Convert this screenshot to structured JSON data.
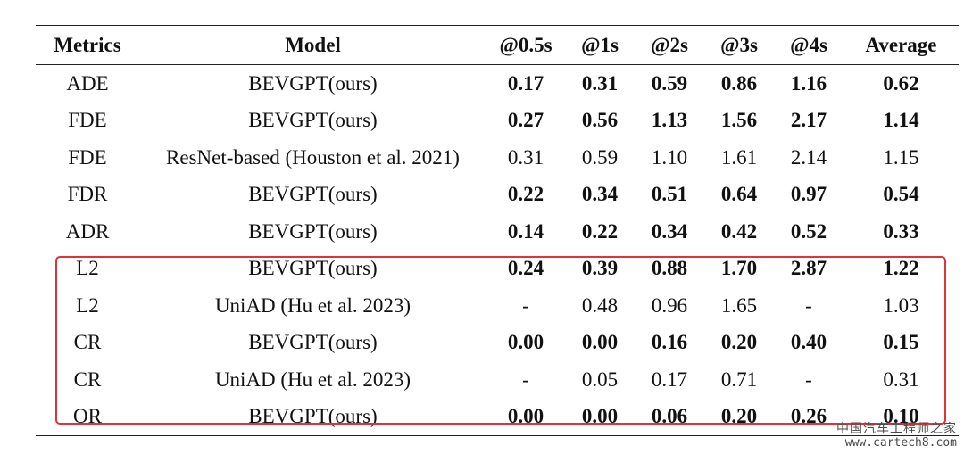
{
  "table": {
    "headers": [
      "Metrics",
      "Model",
      "@0.5s",
      "@1s",
      "@2s",
      "@3s",
      "@4s",
      "Average"
    ],
    "rows": [
      {
        "metric": "ADE",
        "model": "BEVGPT(ours)",
        "values": [
          "0.17",
          "0.31",
          "0.59",
          "0.86",
          "1.16",
          "0.62"
        ],
        "bold": true
      },
      {
        "metric": "FDE",
        "model": "BEVGPT(ours)",
        "values": [
          "0.27",
          "0.56",
          "1.13",
          "1.56",
          "2.17",
          "1.14"
        ],
        "bold": true
      },
      {
        "metric": "FDE",
        "model": "ResNet-based (Houston et al. 2021)",
        "values": [
          "0.31",
          "0.59",
          "1.10",
          "1.61",
          "2.14",
          "1.15"
        ],
        "bold": false
      },
      {
        "metric": "FDR",
        "model": "BEVGPT(ours)",
        "values": [
          "0.22",
          "0.34",
          "0.51",
          "0.64",
          "0.97",
          "0.54"
        ],
        "bold": true
      },
      {
        "metric": "ADR",
        "model": "BEVGPT(ours)",
        "values": [
          "0.14",
          "0.22",
          "0.34",
          "0.42",
          "0.52",
          "0.33"
        ],
        "bold": true
      },
      {
        "metric": "L2",
        "model": "BEVGPT(ours)",
        "values": [
          "0.24",
          "0.39",
          "0.88",
          "1.70",
          "2.87",
          "1.22"
        ],
        "bold": true
      },
      {
        "metric": "L2",
        "model": "UniAD (Hu et al. 2023)",
        "values": [
          "-",
          "0.48",
          "0.96",
          "1.65",
          "-",
          "1.03"
        ],
        "bold": false
      },
      {
        "metric": "CR",
        "model": "BEVGPT(ours)",
        "values": [
          "0.00",
          "0.00",
          "0.16",
          "0.20",
          "0.40",
          "0.15"
        ],
        "bold": true
      },
      {
        "metric": "CR",
        "model": "UniAD (Hu et al. 2023)",
        "values": [
          "-",
          "0.05",
          "0.17",
          "0.71",
          "-",
          "0.31"
        ],
        "bold": false
      },
      {
        "metric": "OR",
        "model": "BEVGPT(ours)",
        "values": [
          "0.00",
          "0.00",
          "0.06",
          "0.20",
          "0.26",
          "0.10"
        ],
        "bold": true
      }
    ]
  },
  "highlight": {
    "color": "#e0323a",
    "rows": [
      "L2",
      "L2",
      "CR",
      "CR",
      "OR"
    ]
  },
  "watermark": {
    "text": "中国汽车工程师之家",
    "url": "www.cartech8.com"
  }
}
